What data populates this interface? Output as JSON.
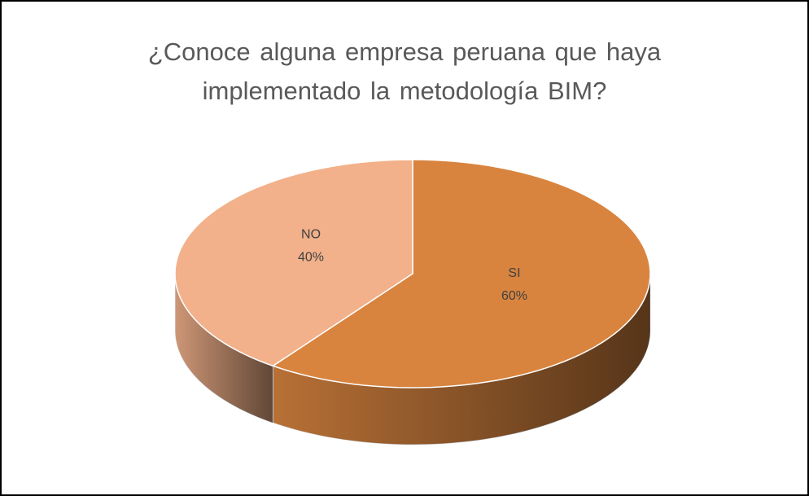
{
  "chart_data": {
    "type": "pie3d",
    "title": "¿Conoce alguna empresa peruana que haya implementado la metodología BIM?",
    "categories": [
      "SI",
      "NO"
    ],
    "values": [
      60,
      40
    ],
    "value_labels": [
      "60%",
      "40%"
    ],
    "colors": [
      "#d8843f",
      "#f2b18a"
    ]
  }
}
